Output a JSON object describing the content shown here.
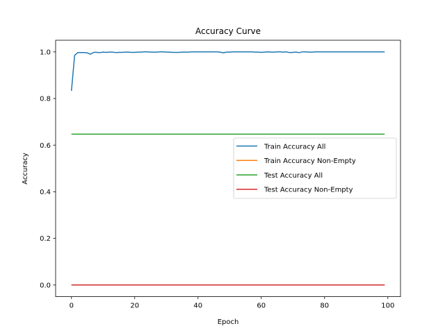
{
  "chart_data": {
    "type": "line",
    "title": "Accuracy Curve",
    "xlabel": "Epoch",
    "ylabel": "Accuracy",
    "xlim": [
      -5,
      104
    ],
    "ylim": [
      -0.05,
      1.05
    ],
    "xticks": [
      0,
      20,
      40,
      60,
      80,
      100
    ],
    "xtick_labels": [
      "0",
      "20",
      "40",
      "60",
      "80",
      "100"
    ],
    "yticks": [
      0.0,
      0.2,
      0.4,
      0.6,
      0.8,
      1.0
    ],
    "ytick_labels": [
      "0.0",
      "0.2",
      "0.4",
      "0.6",
      "0.8",
      "1.0"
    ],
    "grid": false,
    "legend_position": "center-right",
    "series": [
      {
        "name": "Train Accuracy All",
        "color": "#1f77b4",
        "x": [
          0,
          1,
          2,
          3,
          4,
          5,
          6,
          7,
          8,
          9,
          10,
          11,
          12,
          13,
          14,
          15,
          16,
          17,
          18,
          19,
          20,
          21,
          22,
          23,
          24,
          25,
          26,
          27,
          28,
          29,
          30,
          31,
          32,
          33,
          34,
          35,
          36,
          37,
          38,
          39,
          40,
          41,
          42,
          43,
          44,
          45,
          46,
          47,
          48,
          49,
          50,
          51,
          52,
          53,
          54,
          55,
          56,
          57,
          58,
          59,
          60,
          61,
          62,
          63,
          64,
          65,
          66,
          67,
          68,
          69,
          70,
          71,
          72,
          73,
          74,
          75,
          76,
          77,
          78,
          79,
          80,
          81,
          82,
          83,
          84,
          85,
          86,
          87,
          88,
          89,
          90,
          91,
          92,
          93,
          94,
          95,
          96,
          97,
          98,
          99
        ],
        "values": [
          0.833,
          0.985,
          0.997,
          0.997,
          0.997,
          0.996,
          0.99,
          0.998,
          0.998,
          0.997,
          0.999,
          0.998,
          0.999,
          0.999,
          0.997,
          0.998,
          0.998,
          0.999,
          0.999,
          0.998,
          0.998,
          0.999,
          0.999,
          1.0,
          1.0,
          0.999,
          0.999,
          0.999,
          1.0,
          1.0,
          0.999,
          0.999,
          0.998,
          0.998,
          0.998,
          0.999,
          0.999,
          0.999,
          1.0,
          1.0,
          1.0,
          1.0,
          1.0,
          1.0,
          1.0,
          1.0,
          1.0,
          0.999,
          0.996,
          0.999,
          0.999,
          1.0,
          1.0,
          1.0,
          1.0,
          1.0,
          1.0,
          1.0,
          0.999,
          0.999,
          0.998,
          0.999,
          1.0,
          0.999,
          0.999,
          1.0,
          1.0,
          0.999,
          1.0,
          0.997,
          0.998,
          0.999,
          0.997,
          1.0,
          1.0,
          0.999,
          0.999,
          1.0,
          1.0,
          1.0,
          1.0,
          1.0,
          1.0,
          1.0,
          1.0,
          1.0,
          1.0,
          1.0,
          1.0,
          1.0,
          1.0,
          1.0,
          1.0,
          1.0,
          1.0,
          1.0,
          1.0,
          1.0,
          1.0,
          1.0
        ]
      },
      {
        "name": "Train Accuracy Non-Empty",
        "color": "#ff7f0e",
        "x": [
          0,
          99
        ],
        "values": [
          0.0,
          0.0
        ]
      },
      {
        "name": "Test Accuracy All",
        "color": "#2ca02c",
        "x": [
          0,
          99
        ],
        "values": [
          0.647,
          0.647
        ]
      },
      {
        "name": "Test Accuracy Non-Empty",
        "color": "#d62728",
        "x": [
          0,
          99
        ],
        "values": [
          0.0,
          0.0
        ]
      }
    ]
  }
}
